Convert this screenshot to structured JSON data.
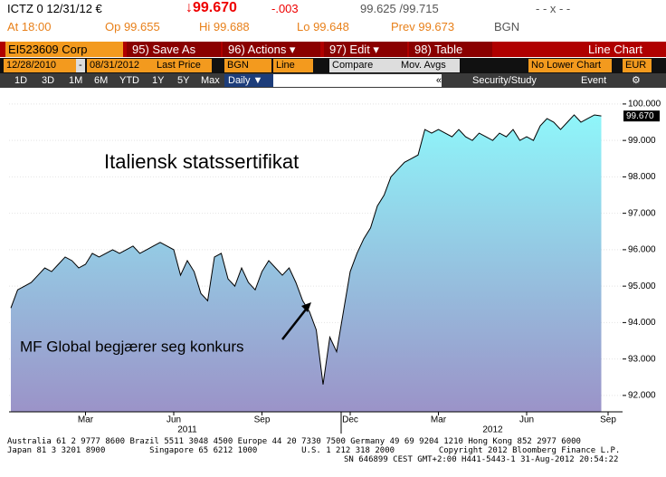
{
  "header": {
    "ticker": "ICTZ 0 12/31/12 €",
    "last": "↓99.670",
    "change": "-.003",
    "bid_ask": "99.625 /99.715",
    "flags": "- - x - -",
    "time": "At 18:00",
    "open": "Op 99.655",
    "high": "Hi 99.688",
    "low": "Lo 99.648",
    "prev": "Prev 99.673",
    "source": "BGN"
  },
  "toolbar": {
    "security": "EI523609 Corp",
    "buttons": [
      "95) Save As",
      "96) Actions ▾",
      "97) Edit ▾",
      "98) Table"
    ],
    "view": "Line Chart"
  },
  "settings": {
    "start": "12/28/2010",
    "dash": "-",
    "end": "08/31/2012",
    "field": "Last Price",
    "source": "BGN",
    "style": "Line",
    "compare": "Compare",
    "mov_avgs": "Mov. Avgs",
    "lower": "No Lower Chart",
    "currency": "EUR"
  },
  "periods": {
    "items": [
      "1D",
      "3D",
      "1M",
      "6M",
      "YTD",
      "1Y",
      "5Y",
      "Max"
    ],
    "frequency": "Daily ▼",
    "collapse": "«",
    "study": "Security/Study",
    "event": "Event"
  },
  "chart_data": {
    "type": "line",
    "area": true,
    "area_colors": [
      "#8ff6fa",
      "#9b93c8"
    ],
    "annotations": [
      "Italiensk statssertifikat",
      "MF Global begjærer seg konkurs"
    ],
    "last_price_label": "99.670",
    "categories": [
      null,
      null,
      null,
      null,
      null,
      null,
      null,
      null,
      null,
      null,
      null,
      "Mar",
      null,
      null,
      null,
      null,
      null,
      null,
      null,
      null,
      null,
      null,
      null,
      null,
      "Jun",
      null,
      null,
      null,
      null,
      null,
      null,
      null,
      null,
      null,
      null,
      null,
      null,
      "Sep",
      null,
      null,
      null,
      null,
      null,
      null,
      null,
      null,
      null,
      null,
      null,
      null,
      "Dec",
      null,
      null,
      null,
      null,
      null,
      null,
      null,
      null,
      null,
      null,
      null,
      null,
      "Mar",
      null,
      null,
      null,
      null,
      null,
      null,
      null,
      null,
      null,
      null,
      null,
      null,
      "Jun",
      null,
      null,
      null,
      null,
      null,
      null,
      null,
      null,
      null,
      null,
      null,
      "Sep"
    ],
    "years": [
      null,
      null,
      null,
      null,
      null,
      null,
      null,
      null,
      null,
      null,
      null,
      null,
      null,
      null,
      null,
      null,
      null,
      null,
      null,
      null,
      null,
      null,
      null,
      null,
      null,
      null,
      "2011",
      null,
      null,
      null,
      null,
      null,
      null,
      null,
      null,
      null,
      null,
      null,
      null,
      null,
      null,
      null,
      null,
      null,
      null,
      null,
      null,
      null,
      null,
      null,
      null,
      null,
      null,
      null,
      null,
      null,
      null,
      null,
      null,
      null,
      null,
      null,
      null,
      null,
      null,
      null,
      null,
      null,
      null,
      null,
      null,
      "2012",
      null,
      null,
      null,
      null,
      null,
      null,
      null,
      null,
      null,
      null,
      null,
      null,
      null,
      null,
      null
    ],
    "series": [
      {
        "name": "Last Price",
        "color": "#000000",
        "values": [
          94.4,
          94.9,
          95.0,
          95.1,
          95.3,
          95.5,
          95.4,
          95.6,
          95.8,
          95.7,
          95.5,
          95.6,
          95.9,
          95.8,
          95.9,
          96.0,
          95.9,
          96.0,
          96.1,
          95.9,
          96.0,
          96.1,
          96.2,
          96.1,
          96.0,
          95.3,
          95.7,
          95.4,
          94.8,
          94.6,
          95.8,
          95.9,
          95.2,
          95.0,
          95.5,
          95.1,
          94.9,
          95.4,
          95.7,
          95.5,
          95.3,
          95.5,
          95.1,
          94.6,
          94.3,
          93.8,
          92.3,
          93.6,
          93.2,
          94.3,
          95.4,
          95.9,
          96.3,
          96.6,
          97.2,
          97.5,
          98.0,
          98.2,
          98.4,
          98.5,
          98.6,
          99.3,
          99.2,
          99.3,
          99.2,
          99.1,
          99.3,
          99.1,
          99.0,
          99.2,
          99.1,
          99.0,
          99.2,
          99.1,
          99.3,
          99.0,
          99.1,
          99.0,
          99.4,
          99.6,
          99.5,
          99.3,
          99.5,
          99.7,
          99.5,
          99.6,
          99.7,
          99.67,
          null
        ]
      }
    ],
    "ylim": [
      91.55,
      100.37
    ],
    "yticks": [
      {
        "value": 92,
        "label": "92.000"
      },
      {
        "value": 93,
        "label": "93.000"
      },
      {
        "value": 94,
        "label": "94.000"
      },
      {
        "value": 95,
        "label": "95.000"
      },
      {
        "value": 96,
        "label": "96.000"
      },
      {
        "value": 97,
        "label": "97.000"
      },
      {
        "value": 98,
        "label": "98.000"
      },
      {
        "value": 99,
        "label": "99.000"
      },
      {
        "value": 100,
        "label": "100.000"
      }
    ],
    "grid": true
  },
  "footer": [
    "Australia 61 2 9777 8600 Brazil 5511 3048 4500 Europe 44 20 7330 7500 Germany 49 69 9204 1210 Hong Kong 852 2977 6000",
    "Japan 81 3 3201 8900         Singapore 65 6212 1000         U.S. 1 212 318 2000         Copyright 2012 Bloomberg Finance L.P.",
    "SN 646899 CEST GMT+2:00 H441-5443-1 31-Aug-2012 20:54:22"
  ]
}
